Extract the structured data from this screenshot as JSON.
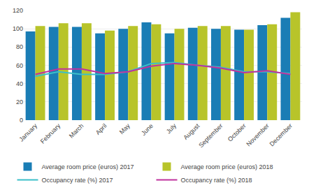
{
  "chart_data": {
    "type": "bar",
    "categories": [
      "January",
      "February",
      "March",
      "April",
      "May",
      "June",
      "July",
      "August",
      "September",
      "October",
      "November",
      "December"
    ],
    "series": [
      {
        "name": "Average room price (euros) 2017",
        "type": "bar",
        "color": "#1a7db5",
        "values": [
          97,
          102,
          102,
          95,
          100,
          107,
          95,
          101,
          100,
          99,
          104,
          112
        ]
      },
      {
        "name": "Average room price (euros) 2018",
        "type": "bar",
        "color": "#b8c42a",
        "values": [
          103,
          106,
          106,
          98,
          103,
          105,
          100,
          103,
          103,
          99,
          105,
          118
        ]
      },
      {
        "name": "Occupancy rate (%) 2017",
        "type": "line",
        "color": "#3cbfc9",
        "values": [
          48,
          53,
          50,
          50,
          53,
          62,
          63,
          60,
          58,
          53,
          53,
          51
        ]
      },
      {
        "name": "Occupancy rate (%) 2018",
        "type": "line",
        "color": "#c0329e",
        "values": [
          50,
          56,
          56,
          51,
          53,
          59,
          62,
          60,
          57,
          52,
          54,
          50
        ]
      }
    ],
    "ylim": [
      0,
      120
    ],
    "yticks": [
      0,
      20,
      40,
      60,
      80,
      100,
      120
    ],
    "grid": true,
    "legend": "bottom"
  }
}
